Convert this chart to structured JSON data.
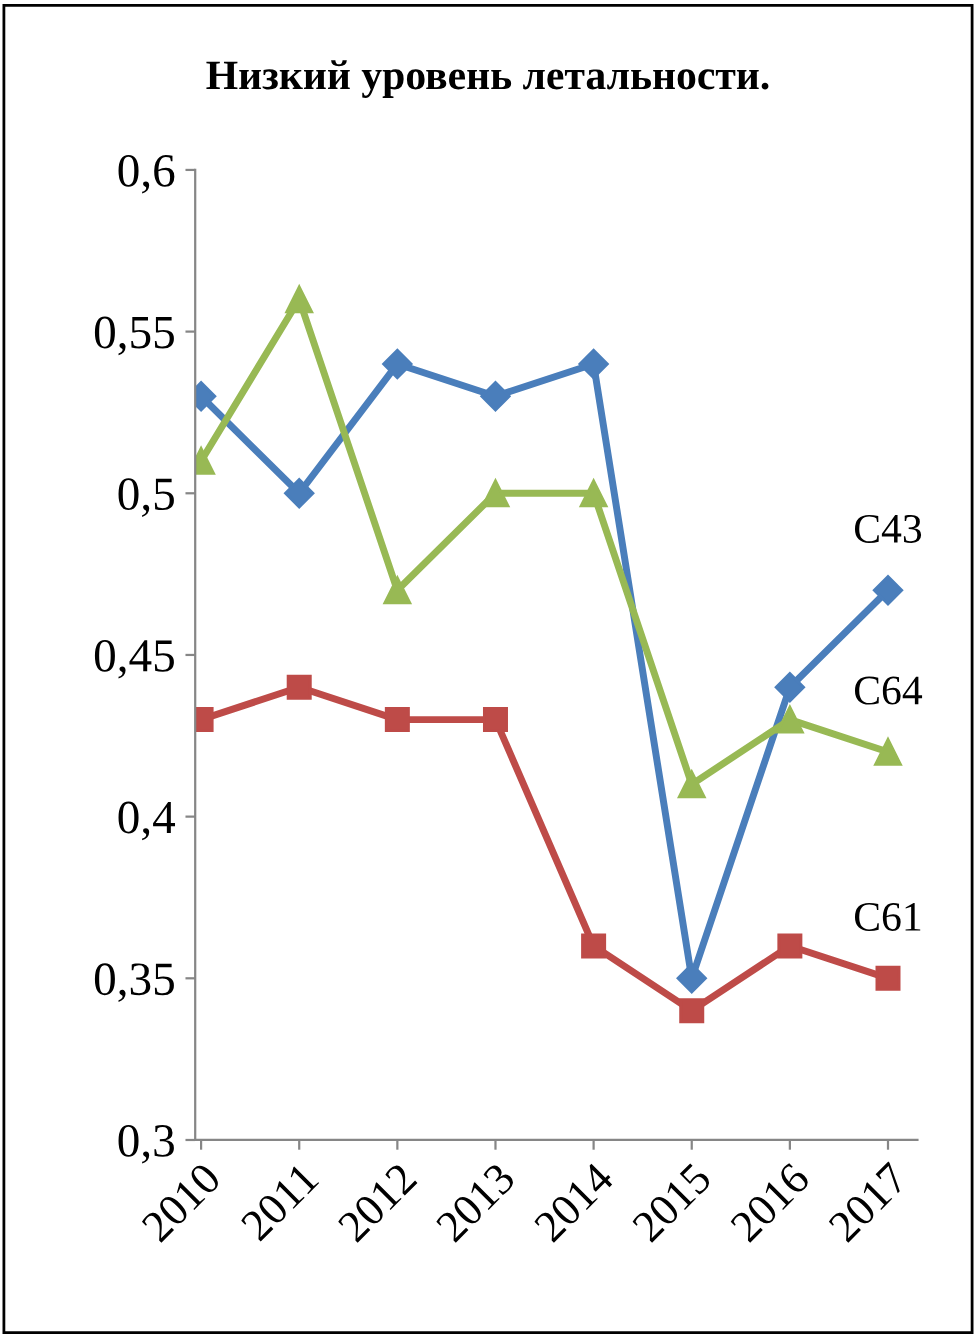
{
  "chart_data": {
    "type": "line",
    "title": "Низкий уровень летальности.",
    "categories": [
      "2010",
      "2011",
      "2012",
      "2013",
      "2014",
      "2015",
      "2016",
      "2017"
    ],
    "series": [
      {
        "name": "C43",
        "color": "#4a7ebb",
        "marker": "diamond",
        "values": [
          0.53,
          0.5,
          0.54,
          0.53,
          0.54,
          0.35,
          0.44,
          0.47
        ]
      },
      {
        "name": "C64",
        "color": "#98b954",
        "marker": "triangle",
        "values": [
          0.51,
          0.56,
          0.47,
          0.5,
          0.5,
          0.41,
          0.43,
          0.42
        ]
      },
      {
        "name": "C61",
        "color": "#be4b48",
        "marker": "square",
        "values": [
          0.43,
          0.44,
          0.43,
          0.43,
          0.36,
          0.34,
          0.36,
          0.35
        ]
      }
    ],
    "ylim": [
      0.3,
      0.6
    ],
    "yticks": [
      {
        "value": 0.3,
        "label": "0,3"
      },
      {
        "value": 0.35,
        "label": "0,35"
      },
      {
        "value": 0.4,
        "label": "0,4"
      },
      {
        "value": 0.45,
        "label": "0,45"
      },
      {
        "value": 0.5,
        "label": "0,5"
      },
      {
        "value": 0.55,
        "label": "0,55"
      },
      {
        "value": 0.6,
        "label": "0,6"
      }
    ],
    "grid": false,
    "legend": false,
    "line_style": "solid"
  }
}
